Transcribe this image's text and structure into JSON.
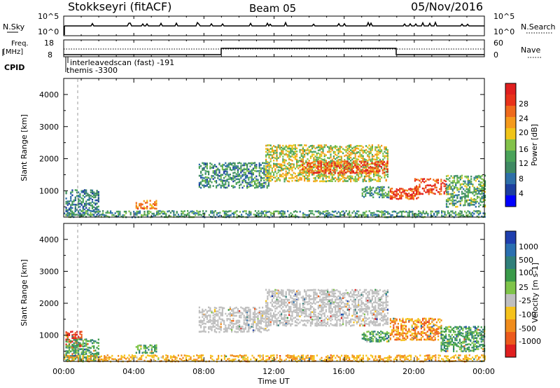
{
  "header": {
    "station": "Stokkseyri (fitACF)",
    "beam": "Beam 05",
    "date": "05/Nov/2016"
  },
  "sky_panel": {
    "left_label": "N.Sky",
    "right_label": "N.Search",
    "left_ticks": [
      "10^5",
      "10^0"
    ],
    "right_ticks": [
      "10^5",
      "10^0"
    ]
  },
  "freq_panel": {
    "left_label_1": "Freq.",
    "left_label_2": "[MHz]",
    "right_label": "Nave",
    "left_ticks": [
      "18",
      "8"
    ],
    "right_ticks": [
      "60",
      "0"
    ]
  },
  "cpid": {
    "label": "CPID",
    "entries": [
      "interleavedscan (fast) -191",
      "themis -3300"
    ]
  },
  "time_axis": {
    "label": "Time UT",
    "ticks": [
      "00:00",
      "04:00",
      "08:00",
      "12:00",
      "16:00",
      "20:00",
      "00:00"
    ]
  },
  "chart_data": [
    {
      "type": "heatmap",
      "title": "Power",
      "xlabel": "Time UT",
      "ylabel": "Slant Range [km]",
      "xlim": [
        0,
        24
      ],
      "ylim": [
        180,
        4500
      ],
      "yticks": [
        "4000",
        "3000",
        "2000",
        "1000"
      ],
      "colorbar_label": "Power [dB]",
      "colorbar_ticks": [
        "28",
        "24",
        "20",
        "16",
        "12",
        "8",
        "4"
      ],
      "colors": [
        "#0000ff",
        "#1d3fa0",
        "#2e6fa8",
        "#3f8a63",
        "#4aa35a",
        "#83c24a",
        "#f0c419",
        "#f59a1c",
        "#ef6a1c",
        "#e8321a",
        "#e01f1f"
      ],
      "regions": [
        {
          "t": [
            0.1,
            2.0
          ],
          "r": [
            250,
            1050
          ],
          "level": 0.25
        },
        {
          "t": [
            4.1,
            5.3
          ],
          "r": [
            450,
            720
          ],
          "level": 0.72
        },
        {
          "t": [
            7.7,
            11.7
          ],
          "r": [
            1100,
            1900
          ],
          "level": 0.3
        },
        {
          "t": [
            11.5,
            18.5
          ],
          "r": [
            1300,
            2450
          ],
          "level": 0.55
        },
        {
          "t": [
            13.5,
            18.5
          ],
          "r": [
            1550,
            1950
          ],
          "level": 0.85
        },
        {
          "t": [
            17.0,
            18.5
          ],
          "r": [
            800,
            1150
          ],
          "level": 0.35
        },
        {
          "t": [
            18.6,
            20.2
          ],
          "r": [
            750,
            1100
          ],
          "level": 0.88
        },
        {
          "t": [
            20.0,
            21.8
          ],
          "r": [
            900,
            1400
          ],
          "level": 0.9
        },
        {
          "t": [
            21.8,
            24.0
          ],
          "r": [
            500,
            1500
          ],
          "level": 0.4
        },
        {
          "t": [
            0.0,
            24.0
          ],
          "r": [
            180,
            400
          ],
          "level": 0.35
        }
      ]
    },
    {
      "type": "heatmap",
      "title": "Velocity",
      "xlabel": "Time UT",
      "ylabel": "Slant Range [km]",
      "xlim": [
        0,
        24
      ],
      "ylim": [
        180,
        4500
      ],
      "yticks": [
        "4000",
        "3000",
        "2000",
        "1000"
      ],
      "colorbar_label": "Velocity [m s-1]",
      "colorbar_ticks": [
        "1000",
        "500",
        "100",
        "25",
        "-25",
        "-100",
        "-500",
        "-1000"
      ],
      "colors": [
        "#1f3fae",
        "#2a6fb0",
        "#2f7f7a",
        "#3a9a4a",
        "#7fc44a",
        "#bfbfbf",
        "#f5c21c",
        "#f08c1c",
        "#ec5a1c",
        "#e01f1f"
      ],
      "regions": [
        {
          "t": [
            0.1,
            1.0
          ],
          "r": [
            650,
            1150
          ],
          "level": "red"
        },
        {
          "t": [
            0.1,
            2.0
          ],
          "r": [
            200,
            900
          ],
          "level": "green"
        },
        {
          "t": [
            4.1,
            5.3
          ],
          "r": [
            450,
            720
          ],
          "level": "green"
        },
        {
          "t": [
            7.7,
            11.7
          ],
          "r": [
            1100,
            1900
          ],
          "level": "gray"
        },
        {
          "t": [
            11.5,
            18.5
          ],
          "r": [
            1300,
            2450
          ],
          "level": "gray"
        },
        {
          "t": [
            17.0,
            18.6
          ],
          "r": [
            800,
            1150
          ],
          "level": "green"
        },
        {
          "t": [
            18.6,
            21.5
          ],
          "r": [
            850,
            1550
          ],
          "level": "orange"
        },
        {
          "t": [
            21.5,
            24.0
          ],
          "r": [
            500,
            1300
          ],
          "level": "green"
        },
        {
          "t": [
            0.0,
            24.0
          ],
          "r": [
            180,
            400
          ],
          "level": "yellow"
        }
      ]
    }
  ]
}
